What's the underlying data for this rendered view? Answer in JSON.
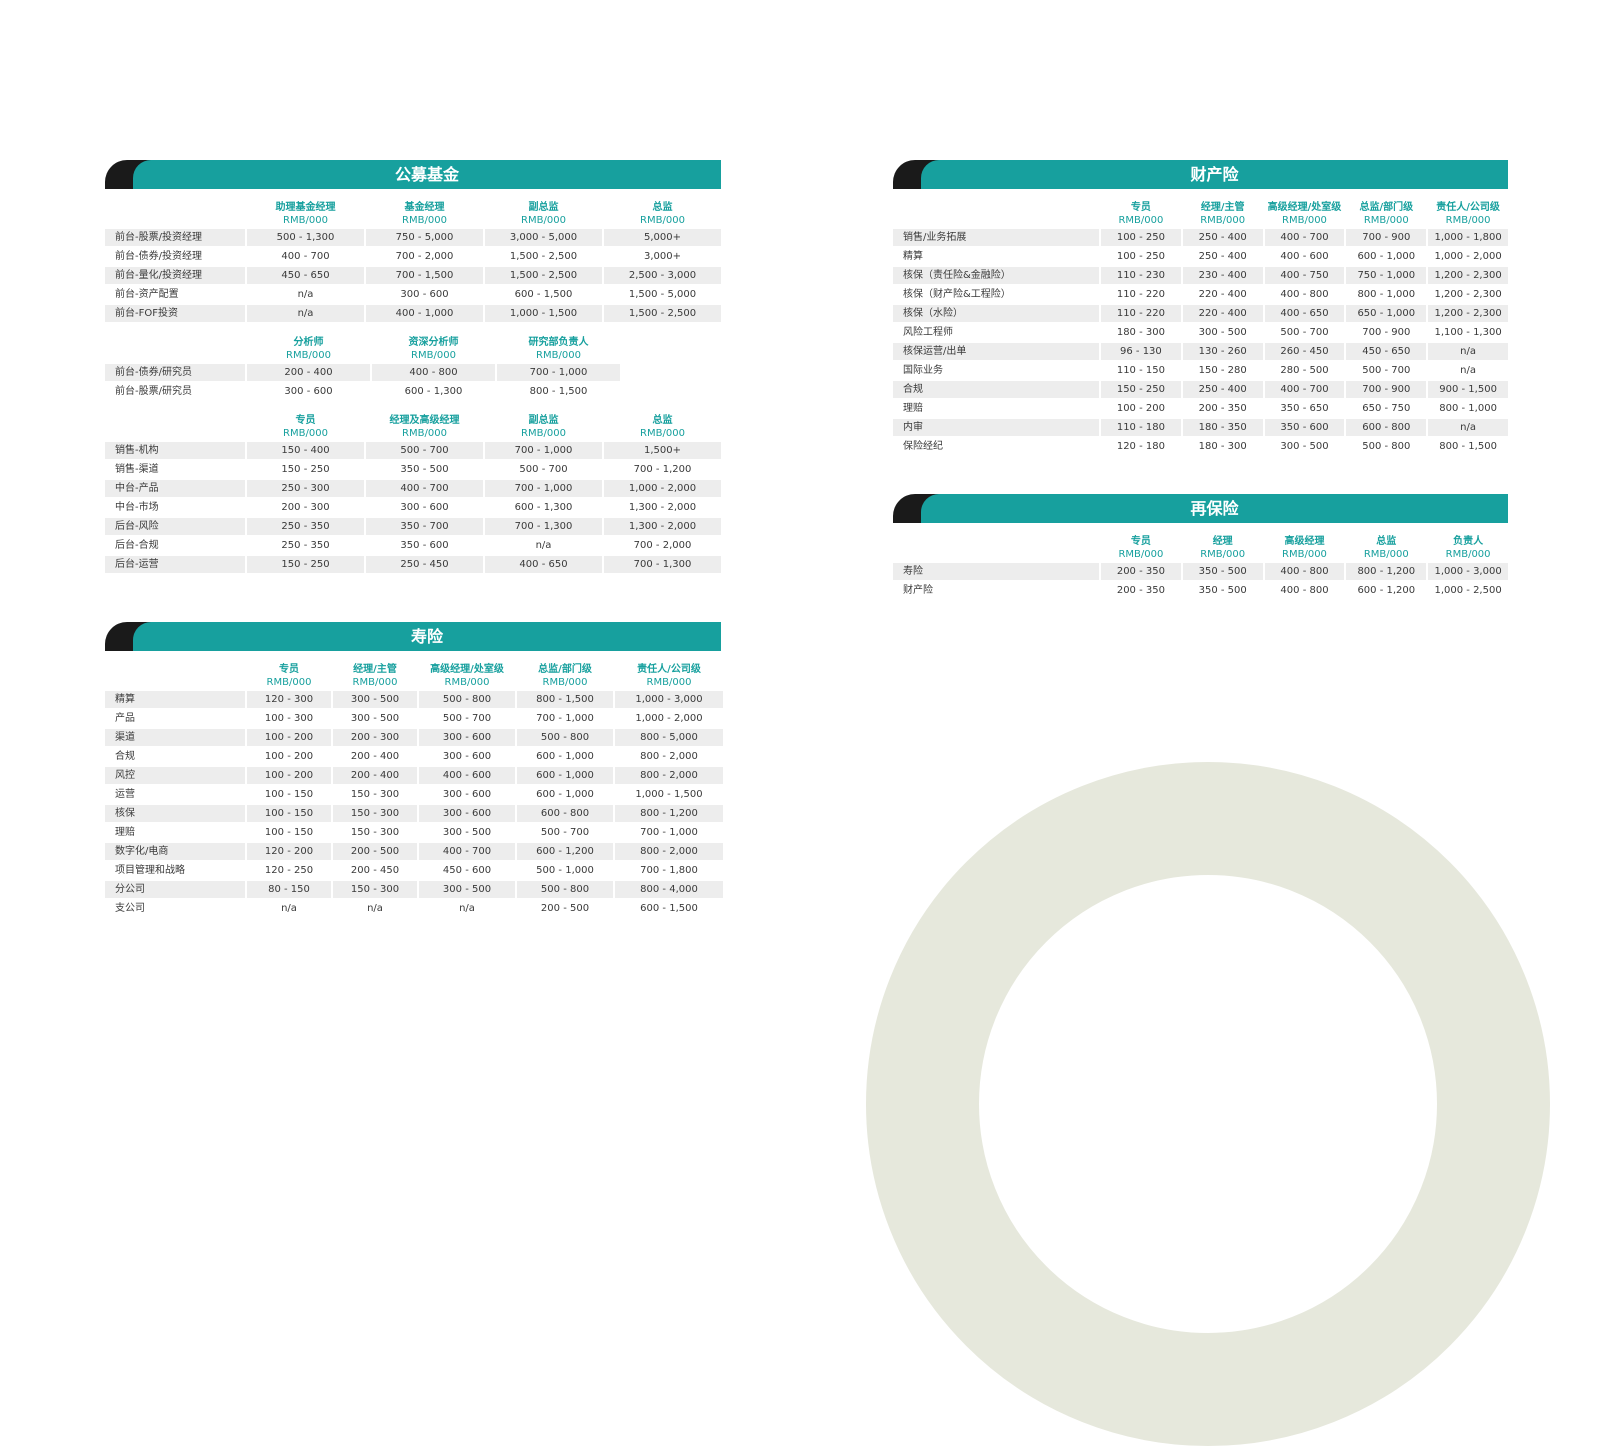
{
  "unit": "RMB/000",
  "public_fund": {
    "title": "公募基金",
    "blocks": [
      {
        "columns": [
          "助理基金经理",
          "基金经理",
          "副总监",
          "总监"
        ],
        "rows": [
          {
            "label": "前台-股票/投资经理",
            "values": [
              "500 - 1,300",
              "750 - 5,000",
              "3,000 - 5,000",
              "5,000+"
            ]
          },
          {
            "label": "前台-债券/投资经理",
            "values": [
              "400 - 700",
              "700 - 2,000",
              "1,500 - 2,500",
              "3,000+"
            ]
          },
          {
            "label": "前台-量化/投资经理",
            "values": [
              "450 - 650",
              "700 - 1,500",
              "1,500 - 2,500",
              "2,500 - 3,000"
            ]
          },
          {
            "label": "前台-资产配置",
            "values": [
              "n/a",
              "300 - 600",
              "600 - 1,500",
              "1,500 - 5,000"
            ]
          },
          {
            "label": "前台-FOF投资",
            "values": [
              "n/a",
              "400 - 1,000",
              "1,000 - 1,500",
              "1,500 - 2,500"
            ]
          }
        ]
      },
      {
        "columns": [
          "分析师",
          "资深分析师",
          "研究部负责人"
        ],
        "rows": [
          {
            "label": "前台-债券/研究员",
            "values": [
              "200 - 400",
              "400 - 800",
              "700 - 1,000"
            ]
          },
          {
            "label": "前台-股票/研究员",
            "values": [
              "300 - 600",
              "600 - 1,300",
              "800 - 1,500"
            ]
          }
        ]
      },
      {
        "columns": [
          "专员",
          "经理及高级经理",
          "副总监",
          "总监"
        ],
        "rows": [
          {
            "label": "销售-机构",
            "values": [
              "150 - 400",
              "500 - 700",
              "700 - 1,000",
              "1,500+"
            ]
          },
          {
            "label": "销售-渠道",
            "values": [
              "150 - 250",
              "350 - 500",
              "500 - 700",
              "700 - 1,200"
            ]
          },
          {
            "label": "中台-产品",
            "values": [
              "250 - 300",
              "400 - 700",
              "700 - 1,000",
              "1,000 - 2,000"
            ]
          },
          {
            "label": "中台-市场",
            "values": [
              "200 - 300",
              "300 - 600",
              "600 - 1,300",
              "1,300 - 2,000"
            ]
          },
          {
            "label": "后台-风险",
            "values": [
              "250 - 350",
              "350 - 700",
              "700 - 1,300",
              "1,300 - 2,000"
            ]
          },
          {
            "label": "后台-合规",
            "values": [
              "250 - 350",
              "350 - 600",
              "n/a",
              "700 - 2,000"
            ]
          },
          {
            "label": "后台-运营",
            "values": [
              "150 - 250",
              "250 - 450",
              "400 - 650",
              "700 - 1,300"
            ]
          }
        ]
      }
    ]
  },
  "life_insurance": {
    "title": "寿险",
    "columns": [
      "专员",
      "经理/主管",
      "高级经理/处室级",
      "总监/部门级",
      "责任人/公司级"
    ],
    "rows": [
      {
        "label": "精算",
        "values": [
          "120 - 300",
          "300 - 500",
          "500 - 800",
          "800 - 1,500",
          "1,000 - 3,000"
        ]
      },
      {
        "label": "产品",
        "values": [
          "100 - 300",
          "300 - 500",
          "500 - 700",
          "700 - 1,000",
          "1,000 - 2,000"
        ]
      },
      {
        "label": "渠道",
        "values": [
          "100 - 200",
          "200 - 300",
          "300 - 600",
          "500 - 800",
          "800 - 5,000"
        ]
      },
      {
        "label": "合规",
        "values": [
          "100 - 200",
          "200 - 400",
          "300 - 600",
          "600 - 1,000",
          "800 - 2,000"
        ]
      },
      {
        "label": "风控",
        "values": [
          "100 - 200",
          "200 - 400",
          "400 - 600",
          "600 - 1,000",
          "800 - 2,000"
        ]
      },
      {
        "label": "运营",
        "values": [
          "100 - 150",
          "150 - 300",
          "300 - 600",
          "600 - 1,000",
          "1,000 - 1,500"
        ]
      },
      {
        "label": "核保",
        "values": [
          "100 - 150",
          "150 - 300",
          "300 - 600",
          "600 - 800",
          "800 - 1,200"
        ]
      },
      {
        "label": "理赔",
        "values": [
          "100 - 150",
          "150 - 300",
          "300 - 500",
          "500 - 700",
          "700 - 1,000"
        ]
      },
      {
        "label": "数字化/电商",
        "values": [
          "120 - 200",
          "200 - 500",
          "400 - 700",
          "600 - 1,200",
          "800 - 2,000"
        ]
      },
      {
        "label": " 项目管理和战略",
        "values": [
          "120 - 250",
          "200 - 450",
          "450 - 600",
          "500 - 1,000",
          "700 - 1,800"
        ]
      },
      {
        "label": "分公司",
        "values": [
          "80 - 150",
          "150 - 300",
          "300 - 500",
          "500 - 800",
          "800 - 4,000"
        ]
      },
      {
        "label": "支公司",
        "values": [
          "n/a",
          "n/a",
          "n/a",
          "200 - 500",
          "600 - 1,500"
        ]
      }
    ]
  },
  "property_insurance": {
    "title": "财产险",
    "columns": [
      "专员",
      "经理/主管",
      "高级经理/处室级",
      "总监/部门级",
      "责任人/公司级"
    ],
    "rows": [
      {
        "label": "销售/业务拓展",
        "values": [
          "100 - 250",
          "250 - 400",
          "400 - 700",
          "700 - 900",
          "1,000 - 1,800"
        ]
      },
      {
        "label": "精算",
        "values": [
          "100 - 250",
          "250 - 400",
          "400 - 600",
          "600 - 1,000",
          "1,000 - 2,000"
        ]
      },
      {
        "label": "核保（责任险&金融险）",
        "values": [
          "110 - 230",
          "230 - 400",
          "400 - 750",
          "750 - 1,000",
          "1,200 - 2,300"
        ]
      },
      {
        "label": "核保（财产险&工程险）",
        "values": [
          "110 - 220",
          "220 - 400",
          "400 - 800",
          "800 - 1,000",
          "1,200 - 2,300"
        ]
      },
      {
        "label": "核保（水险）",
        "values": [
          "110 - 220",
          "220 - 400",
          "400 - 650",
          "650 - 1,000",
          "1,200 - 2,300"
        ]
      },
      {
        "label": "风险工程师",
        "values": [
          "180 - 300",
          "300 - 500",
          "500 - 700",
          "700 - 900",
          "1,100 - 1,300"
        ]
      },
      {
        "label": "核保运营/出单",
        "values": [
          "96 - 130",
          "130 - 260",
          "260 - 450",
          "450 - 650",
          "n/a"
        ]
      },
      {
        "label": "国际业务",
        "values": [
          "110 - 150",
          "150 - 280",
          "280 - 500",
          "500 - 700",
          "n/a"
        ]
      },
      {
        "label": "合规",
        "values": [
          "150 - 250",
          "250 - 400",
          "400 - 700",
          "700 - 900",
          "900 - 1,500"
        ]
      },
      {
        "label": "理赔",
        "values": [
          "100 - 200",
          "200 - 350",
          "350 - 650",
          "650 - 750",
          "800 - 1,000"
        ]
      },
      {
        "label": "内审",
        "values": [
          "110 - 180",
          "180 - 350",
          "350 - 600",
          "600 - 800",
          "n/a"
        ]
      },
      {
        "label": "保险经纪",
        "values": [
          "120 - 180",
          "180 - 300",
          "300 - 500",
          "500 - 800",
          "800 - 1,500"
        ]
      }
    ]
  },
  "reinsurance": {
    "title": "再保险",
    "columns": [
      "专员",
      "经理",
      "高级经理",
      "总监",
      "负责人"
    ],
    "rows": [
      {
        "label": "寿险",
        "values": [
          "200 - 350",
          "350 - 500",
          "400 - 800",
          "800 - 1,200",
          "1,000 - 3,000"
        ]
      },
      {
        "label": "财产险",
        "values": [
          "200 - 350",
          "350 - 500",
          "400 - 800",
          "600 - 1,200",
          "1,000 - 2,500"
        ]
      }
    ]
  }
}
